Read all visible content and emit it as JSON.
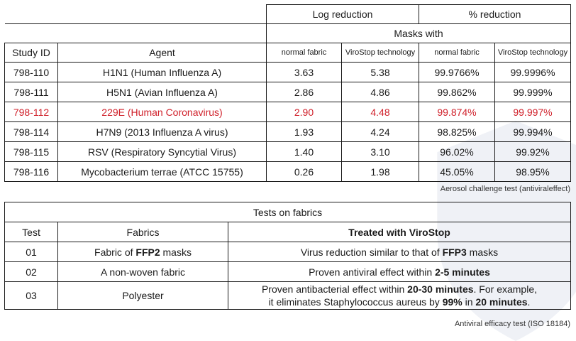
{
  "table1": {
    "header_log_reduction": "Log reduction",
    "header_percent_reduction": "% reduction",
    "header_masks_with": "Masks with",
    "col_study_id": "Study ID",
    "col_agent": "Agent",
    "col_log_normal": "normal fabric",
    "col_log_virostop": "ViroStop technology",
    "col_pct_normal": "normal fabric",
    "col_pct_virostop": "ViroStop technology",
    "rows": [
      {
        "id": "798-110",
        "agent": "H1N1 (Human Influenza A)",
        "log_normal": "3.63",
        "log_virostop": "5.38",
        "pct_normal": "99.9766%",
        "pct_virostop": "99.9996%"
      },
      {
        "id": "798-111",
        "agent": "H5N1 (Avian Influenza A)",
        "log_normal": "2.86",
        "log_virostop": "4.86",
        "pct_normal": "99.862%",
        "pct_virostop": "99.999%"
      },
      {
        "id": "798-112",
        "agent": "229E (Human Coronavirus)",
        "log_normal": "2.90",
        "log_virostop": "4.48",
        "pct_normal": "99.874%",
        "pct_virostop": "99.997%"
      },
      {
        "id": "798-114",
        "agent": "H7N9 (2013 Influenza A virus)",
        "log_normal": "1.93",
        "log_virostop": "4.24",
        "pct_normal": "98.825%",
        "pct_virostop": "99.994%"
      },
      {
        "id": "798-115",
        "agent": "RSV (Respiratory Syncytial Virus)",
        "log_normal": "1.40",
        "log_virostop": "3.10",
        "pct_normal": "96.02%",
        "pct_virostop": "99.92%"
      },
      {
        "id": "798-116",
        "agent": "Mycobacterium terrae (ATCC 15755)",
        "log_normal": "0.26",
        "log_virostop": "1.98",
        "pct_normal": "45.05%",
        "pct_virostop": "98.95%"
      }
    ],
    "highlight_color": "#d0202a",
    "footnote": "Aerosol challenge test (antiviraleffect)"
  },
  "table2": {
    "title": "Tests on fabrics",
    "col_test": "Test",
    "col_fabrics": "Fabrics",
    "col_treated": "Treated with ViroStop",
    "rows": [
      {
        "test": "01",
        "fabric_pre": "Fabric of ",
        "fabric_bold": "FFP2",
        "fabric_post": " masks",
        "result": [
          {
            "t": "Virus reduction similar to that of ",
            "b": false
          },
          {
            "t": "FFP3",
            "b": true
          },
          {
            "t": " masks",
            "b": false
          }
        ]
      },
      {
        "test": "02",
        "fabric": "A non-woven fabric",
        "result": [
          {
            "t": "Proven antiviral effect within ",
            "b": false
          },
          {
            "t": "2-5 minutes",
            "b": true
          }
        ]
      },
      {
        "test": "03",
        "fabric": "Polyester",
        "result_line1": [
          {
            "t": "Proven antibacterial effect within ",
            "b": false
          },
          {
            "t": "20-30 minutes",
            "b": true
          },
          {
            "t": ". For example,",
            "b": false
          }
        ],
        "result_line2": [
          {
            "t": "it eliminates Staphylococcus aureus by ",
            "b": false
          },
          {
            "t": "99%",
            "b": true
          },
          {
            "t": " in ",
            "b": false
          },
          {
            "t": "20 minutes",
            "b": true
          },
          {
            "t": ".",
            "b": false
          }
        ]
      }
    ],
    "footnote": "Antiviral efficacy test (ISO 18184)"
  },
  "icons": {
    "watermark": "shield-watermark-icon"
  }
}
